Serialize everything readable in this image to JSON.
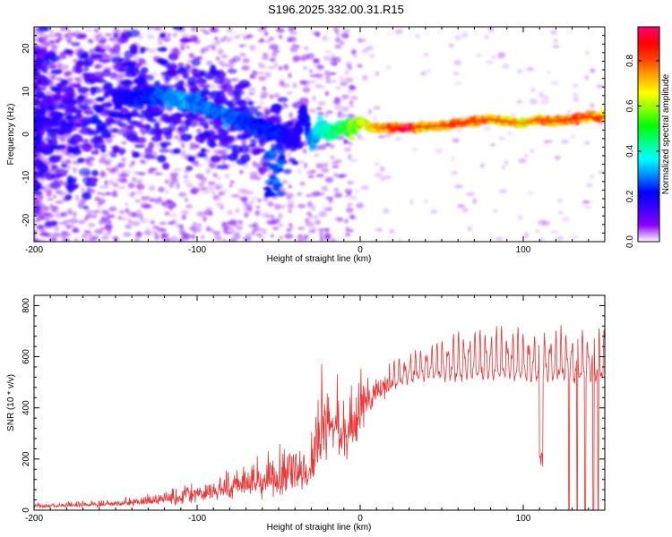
{
  "figure_title": "S196.2025.332.00.31.R15",
  "chart_data": [
    {
      "type": "heatmap",
      "name": "spectrogram",
      "xlabel": "Height of straight line (km)",
      "ylabel": "Frequency (Hz)",
      "xlim": [
        -200,
        150
      ],
      "ylim": [
        -25,
        25
      ],
      "x_ticks": [
        -200,
        -100,
        0,
        100
      ],
      "y_ticks": [
        -20,
        -10,
        0,
        10,
        20
      ],
      "colorbar": {
        "label": "Normalized spectral amplitude",
        "range": [
          0,
          0.95
        ],
        "ticks": [
          0,
          0.2,
          0.4,
          0.6,
          0.8
        ],
        "tick_labels": [
          "0.0",
          "0.2",
          "0.4",
          "0.6",
          "0.8"
        ],
        "colormap": [
          "#ffffff",
          "#8a00ff",
          "#3a00ff",
          "#0000ff",
          "#0088ff",
          "#00ffff",
          "#00ff88",
          "#00ff00",
          "#88ff00",
          "#ffff00",
          "#ffaa00",
          "#ff4400",
          "#ff0000",
          "#ff0077"
        ]
      },
      "ridge": {
        "x": [
          -150,
          -130,
          -120,
          -110,
          -100,
          -90,
          -80,
          -70,
          -60,
          -50,
          -40,
          -35,
          -30,
          -25,
          -20,
          -15,
          -10,
          -5,
          0,
          5,
          10,
          20,
          30,
          40,
          50,
          60,
          70,
          80,
          90,
          100,
          110,
          120,
          130,
          140,
          150
        ],
        "y": [
          8,
          9,
          9,
          8,
          7,
          5.5,
          4,
          3,
          1.5,
          0,
          -2,
          6,
          -2,
          2,
          0.5,
          1,
          2,
          1.5,
          3,
          2,
          1.5,
          1.5,
          1.5,
          1.8,
          2,
          2.5,
          3,
          3.5,
          3,
          2.5,
          3.5,
          3,
          3.5,
          4,
          4
        ],
        "amplitude": [
          0.2,
          0.25,
          0.3,
          0.35,
          0.3,
          0.3,
          0.3,
          0.25,
          0.25,
          0.25,
          0.2,
          0.2,
          0.3,
          0.4,
          0.45,
          0.5,
          0.55,
          0.6,
          0.65,
          0.7,
          0.75,
          0.85,
          0.95,
          0.8,
          0.8,
          0.9,
          0.85,
          0.8,
          0.8,
          0.75,
          0.8,
          0.8,
          0.85,
          0.85,
          0.85
        ]
      }
    },
    {
      "type": "line",
      "name": "snr",
      "xlabel": "Height of straight line (km)",
      "ylabel": "SNR (10 * v/v)",
      "xlim": [
        -200,
        150
      ],
      "ylim": [
        0,
        840
      ],
      "x_ticks": [
        -200,
        -100,
        0,
        100
      ],
      "y_ticks": [
        0,
        200,
        400,
        600,
        800
      ],
      "color": "#ee3333",
      "envelope": {
        "x": [
          -200,
          -180,
          -160,
          -140,
          -120,
          -100,
          -80,
          -70,
          -60,
          -50,
          -40,
          -30,
          -25,
          -22,
          -20,
          -15,
          -10,
          -5,
          0,
          5,
          10,
          20,
          30,
          40,
          50,
          60,
          70,
          80,
          90,
          100,
          110,
          120,
          130,
          140,
          150
        ],
        "mean": [
          15,
          18,
          22,
          28,
          40,
          60,
          90,
          100,
          110,
          120,
          130,
          170,
          250,
          300,
          350,
          320,
          300,
          330,
          380,
          420,
          460,
          500,
          530,
          540,
          545,
          550,
          555,
          555,
          555,
          555,
          545,
          550,
          550,
          545,
          550
        ],
        "amp": [
          12,
          14,
          18,
          25,
          40,
          60,
          90,
          110,
          110,
          120,
          120,
          150,
          200,
          300,
          250,
          200,
          200,
          200,
          150,
          120,
          100,
          90,
          90,
          110,
          140,
          160,
          170,
          170,
          170,
          170,
          160,
          170,
          170,
          170,
          170
        ]
      },
      "dropouts_x": [
        128,
        133,
        138,
        143,
        146
      ],
      "dip": {
        "x": 111,
        "y": 170
      }
    }
  ]
}
